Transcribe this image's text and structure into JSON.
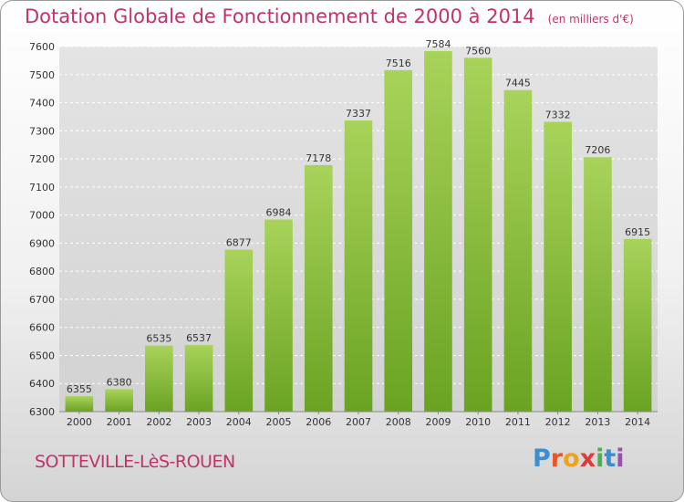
{
  "header": {
    "title": "Dotation Globale de Fonctionnement de 2000 à 2014",
    "subtitle": "(en milliers d'€)"
  },
  "footer": {
    "city": "SOTTEVILLE-LèS-ROUEN",
    "logo_letters": [
      "P",
      "r",
      "o",
      "x",
      "i",
      "t",
      "i"
    ],
    "logo_colors": [
      "#3a8fd0",
      "#e4572e",
      "#f1a21b",
      "#e03a3a",
      "#4caf50",
      "#3a8fd0",
      "#9c4fb0"
    ]
  },
  "colors": {
    "bar_light": "#a8d35a",
    "bar_dark": "#6aa322",
    "grid": "#ffffff",
    "title": "#c0336b"
  },
  "chart_data": {
    "type": "bar",
    "title": "Dotation Globale de Fonctionnement de 2000 à 2014",
    "subtitle": "(en milliers d'€)",
    "categories": [
      "2000",
      "2001",
      "2002",
      "2003",
      "2004",
      "2005",
      "2006",
      "2007",
      "2008",
      "2009",
      "2010",
      "2011",
      "2012",
      "2013",
      "2014"
    ],
    "values": [
      6355,
      6380,
      6535,
      6537,
      6877,
      6984,
      7178,
      7337,
      7516,
      7584,
      7560,
      7445,
      7332,
      7206,
      6915
    ],
    "ylim": [
      6300,
      7600
    ],
    "yticks": [
      6300,
      6400,
      6500,
      6600,
      6700,
      6800,
      6900,
      7000,
      7100,
      7200,
      7300,
      7400,
      7500,
      7600
    ],
    "grid": true,
    "data_labels": true
  }
}
